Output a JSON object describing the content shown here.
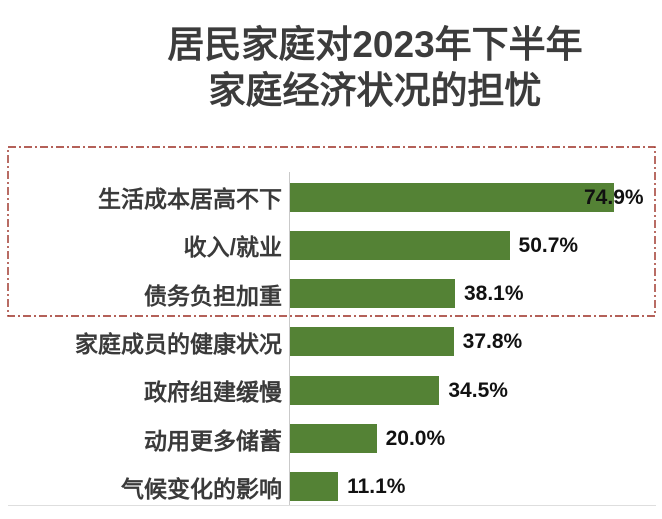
{
  "title": {
    "line1": "居民家庭对2023年下半年",
    "line2": "家庭经济状况的担忧"
  },
  "chart_data": {
    "type": "bar",
    "orientation": "horizontal",
    "title": "居民家庭对2023年下半年家庭经济状况的担忧",
    "categories": [
      "生活成本居高不下",
      "收入/就业",
      "债务负担加重",
      "家庭成员的健康状况",
      "政府组建缓慢",
      "动用更多储蓄",
      "气候变化的影响"
    ],
    "values": [
      74.9,
      50.7,
      38.1,
      37.8,
      34.5,
      20.0,
      11.1
    ],
    "value_labels": [
      "74.9%",
      "50.7%",
      "38.1%",
      "37.8%",
      "34.5%",
      "20.0%",
      "11.1%"
    ],
    "xlabel": "",
    "ylabel": "",
    "xlim": [
      0,
      84.5
    ],
    "grid": false,
    "legend": false,
    "bar_color": "#548235",
    "annotation_box": {
      "covers_categories": [
        "生活成本居高不下",
        "收入/就业",
        "债务负担加重"
      ],
      "line_style": "dash-dot",
      "color": "#9b2d22"
    }
  },
  "colors": {
    "bar": "#548235",
    "title_text": "#3c3c3c",
    "category_text": "#3a3a3a",
    "value_text": "#111111",
    "axis_line": "#c9c9c9",
    "highlight_border": "#9b2d22"
  }
}
